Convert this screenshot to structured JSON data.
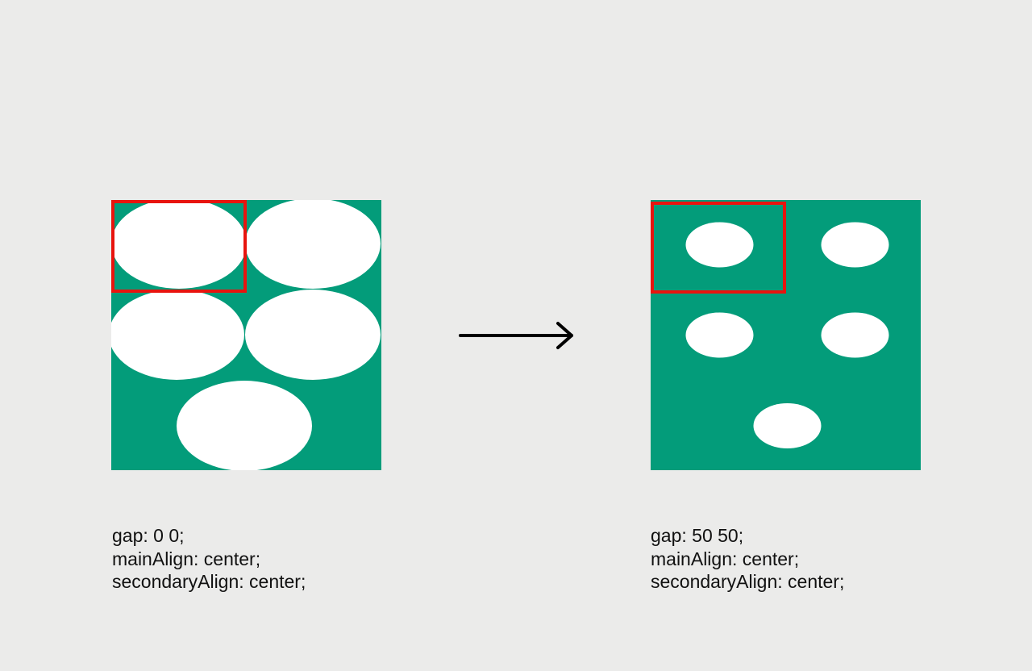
{
  "colors": {
    "background": "#ebebea",
    "container": "#039c7a",
    "ellipse": "#ffffff",
    "highlight": "#e8140e",
    "arrow": "#000000",
    "text": "#111111"
  },
  "before": {
    "caption": {
      "gap": "gap: 0 0;",
      "main_align": "mainAlign: center;",
      "secondary_align": "secondaryAlign: center;"
    }
  },
  "after": {
    "caption": {
      "gap": "gap: 50 50;",
      "main_align": "mainAlign: center;",
      "secondary_align": "secondaryAlign: center;"
    }
  },
  "arrow": {
    "icon": "right-arrow-icon"
  }
}
